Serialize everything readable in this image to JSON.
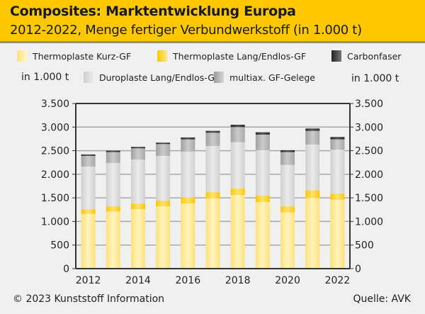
{
  "header": {
    "title": "Composites: Marktentwicklung Europa",
    "subtitle": "2012-2022, Menge fertiger Verbundwerkstoff (in 1.000 t)"
  },
  "units": {
    "left": "in 1.000 t",
    "right": "in 1.000 t"
  },
  "footer": {
    "copyright": "© 2023 Kunststoff Information",
    "source": "Quelle: AVK"
  },
  "colors": {
    "header_bg": "#fdc800",
    "kurz": "#fde98a",
    "lang": "#fdd230",
    "duro": "#dcdcdc",
    "multiax": "#b4b4b4",
    "carbon": "#3a3a3a",
    "grid": "#a8a8a8",
    "axis": "#333333"
  },
  "chart_data": {
    "type": "bar",
    "stacked": true,
    "title": "Composites: Marktentwicklung Europa",
    "subtitle": "2012-2022, Menge fertiger Verbundwerkstoff (in 1.000 t)",
    "xlabel": "",
    "ylabel": "in 1.000 t",
    "ylabel_right": "in 1.000 t",
    "ylim": [
      0,
      3500
    ],
    "yticks": [
      0,
      500,
      1000,
      1500,
      2000,
      2500,
      3000,
      3500
    ],
    "ytick_labels": [
      "0",
      "500",
      "1.000",
      "1.500",
      "2.000",
      "2.500",
      "3.000",
      "3.500"
    ],
    "categories": [
      "2012",
      "2013",
      "2014",
      "2015",
      "2016",
      "2017",
      "2018",
      "2019",
      "2020",
      "2021",
      "2022"
    ],
    "xtick_labels": [
      "2012",
      "2014",
      "2016",
      "2018",
      "2020",
      "2022"
    ],
    "grid": true,
    "legend_position": "top",
    "series": [
      {
        "name": "Thermoplaste Kurz-GF",
        "key": "kurz",
        "values": [
          1160,
          1210,
          1260,
          1320,
          1380,
          1490,
          1560,
          1410,
          1190,
          1500,
          1460
        ]
      },
      {
        "name": "Thermoplaste Lang/Endlos-GF",
        "key": "lang",
        "values": [
          100,
          110,
          120,
          120,
          130,
          130,
          140,
          140,
          130,
          160,
          130
        ]
      },
      {
        "name": "Duroplaste Lang/Endlos-GF",
        "key": "duro",
        "values": [
          900,
          920,
          930,
          950,
          970,
          980,
          980,
          960,
          880,
          970,
          930
        ]
      },
      {
        "name": "multiax. GF-Gelege",
        "key": "multiax",
        "values": [
          230,
          230,
          240,
          250,
          260,
          280,
          320,
          330,
          270,
          290,
          220
        ]
      },
      {
        "name": "Carbonfaser",
        "key": "carbon",
        "values": [
          30,
          30,
          30,
          30,
          40,
          40,
          50,
          50,
          40,
          50,
          50
        ]
      }
    ],
    "totals": [
      2420,
      2500,
      2580,
      2670,
      2780,
      2920,
      3050,
      2890,
      2510,
      2970,
      2790
    ]
  }
}
